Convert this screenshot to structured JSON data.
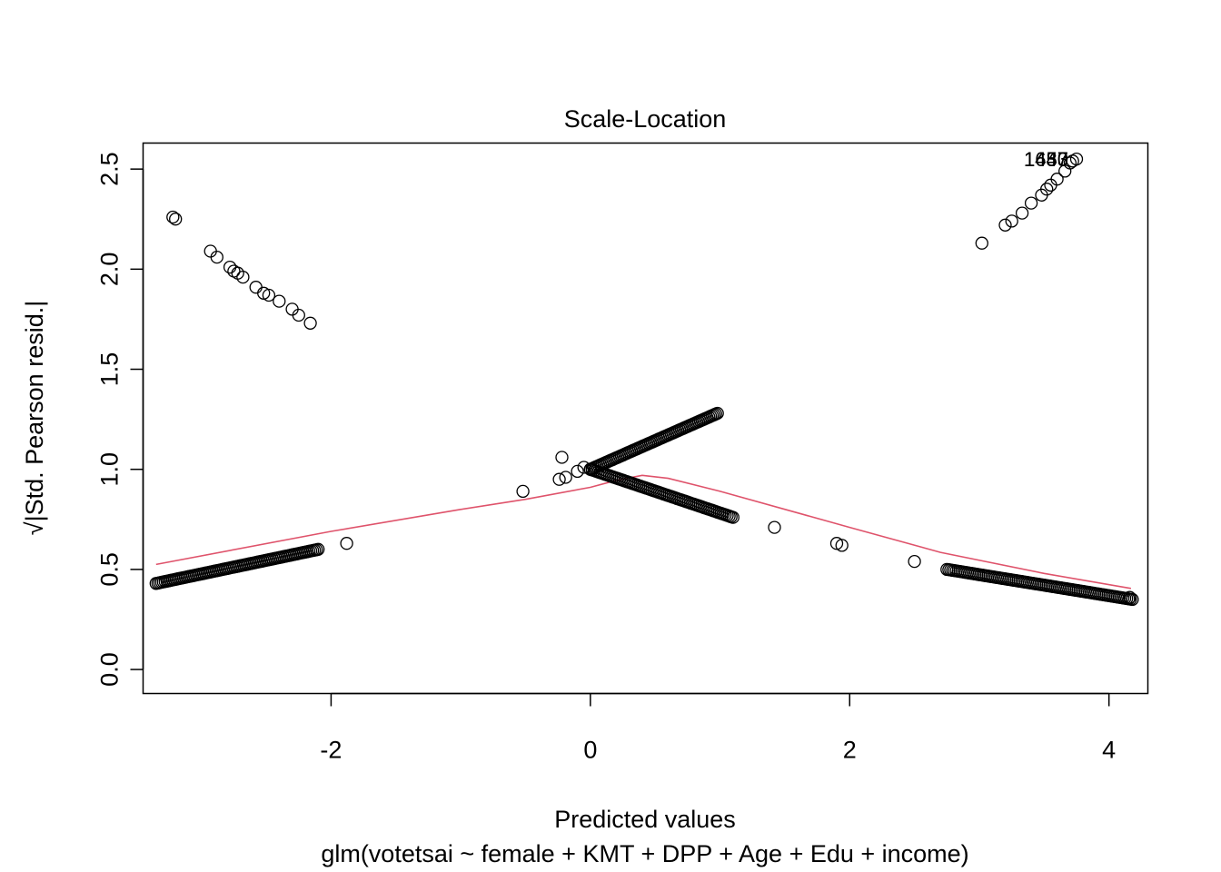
{
  "chart_data": {
    "type": "scatter",
    "title": "Scale-Location",
    "xlabel": "Predicted values",
    "subtitle": "glm(votetsai ~ female + KMT + DPP + Age + Edu + income)",
    "ylabel_radical": "√",
    "ylabel": "|Std. Pearson resid.|",
    "xlim": [
      -3.45,
      4.3
    ],
    "ylim": [
      -0.12,
      2.63
    ],
    "x_ticks": [
      -2,
      0,
      2,
      4
    ],
    "x_tick_labels": [
      "-2",
      "0",
      "2",
      "4"
    ],
    "y_ticks": [
      0.0,
      0.5,
      1.0,
      1.5,
      2.0,
      2.5
    ],
    "y_tick_labels": [
      "0.0",
      "0.5",
      "1.0",
      "1.5",
      "2.0",
      "2.5"
    ],
    "point_segments": [
      {
        "name": "low-predicted cluster (lower branch)",
        "x_start": -3.35,
        "x_end": -2.1,
        "y_start": 0.43,
        "y_end": 0.6,
        "count": 90
      },
      {
        "name": "middle rising branch",
        "x_start": 0.0,
        "x_end": 0.98,
        "y_start": 1.0,
        "y_end": 1.28,
        "count": 75
      },
      {
        "name": "middle falling branch",
        "x_start": 0.0,
        "x_end": 1.1,
        "y_start": 1.0,
        "y_end": 0.76,
        "count": 75
      },
      {
        "name": "high-predicted cluster (lower branch)",
        "x_start": 2.75,
        "x_end": 4.18,
        "y_start": 0.5,
        "y_end": 0.35,
        "count": 100
      }
    ],
    "points": [
      [
        -3.22,
        2.26
      ],
      [
        -3.2,
        2.25
      ],
      [
        -2.93,
        2.09
      ],
      [
        -2.88,
        2.06
      ],
      [
        -2.78,
        2.01
      ],
      [
        -2.75,
        1.99
      ],
      [
        -2.72,
        1.98
      ],
      [
        -2.68,
        1.96
      ],
      [
        -2.58,
        1.91
      ],
      [
        -2.52,
        1.88
      ],
      [
        -2.48,
        1.87
      ],
      [
        -2.4,
        1.84
      ],
      [
        -2.3,
        1.8
      ],
      [
        -2.25,
        1.77
      ],
      [
        -2.16,
        1.73
      ],
      [
        -1.88,
        0.63
      ],
      [
        -0.52,
        0.89
      ],
      [
        -0.24,
        0.95
      ],
      [
        -0.22,
        1.06
      ],
      [
        -0.19,
        0.96
      ],
      [
        -0.1,
        0.99
      ],
      [
        -0.05,
        1.01
      ],
      [
        1.42,
        0.71
      ],
      [
        1.9,
        0.63
      ],
      [
        1.94,
        0.62
      ],
      [
        2.5,
        0.54
      ],
      [
        4.16,
        0.36
      ],
      [
        3.02,
        2.13
      ],
      [
        3.2,
        2.22
      ],
      [
        3.25,
        2.24
      ],
      [
        3.33,
        2.28
      ],
      [
        3.4,
        2.33
      ],
      [
        3.48,
        2.37
      ],
      [
        3.52,
        2.4
      ],
      [
        3.55,
        2.42
      ],
      [
        3.6,
        2.45
      ],
      [
        3.66,
        2.49
      ],
      [
        3.7,
        2.53
      ],
      [
        3.72,
        2.54
      ],
      [
        3.75,
        2.55
      ]
    ],
    "point_labels": [
      {
        "text": "1443",
        "x": 3.75,
        "y": 2.55
      },
      {
        "text": "1650",
        "x": 3.75,
        "y": 2.55
      },
      {
        "text": "1437",
        "x": 3.75,
        "y": 2.55
      }
    ],
    "smoother": {
      "color": "#DF536B",
      "x": [
        -3.35,
        -2.0,
        -1.0,
        -0.5,
        0.0,
        0.2,
        0.4,
        0.6,
        1.0,
        2.0,
        2.7,
        3.5,
        4.17
      ],
      "y": [
        0.525,
        0.69,
        0.8,
        0.85,
        0.91,
        0.945,
        0.97,
        0.955,
        0.89,
        0.71,
        0.585,
        0.48,
        0.405
      ]
    }
  }
}
